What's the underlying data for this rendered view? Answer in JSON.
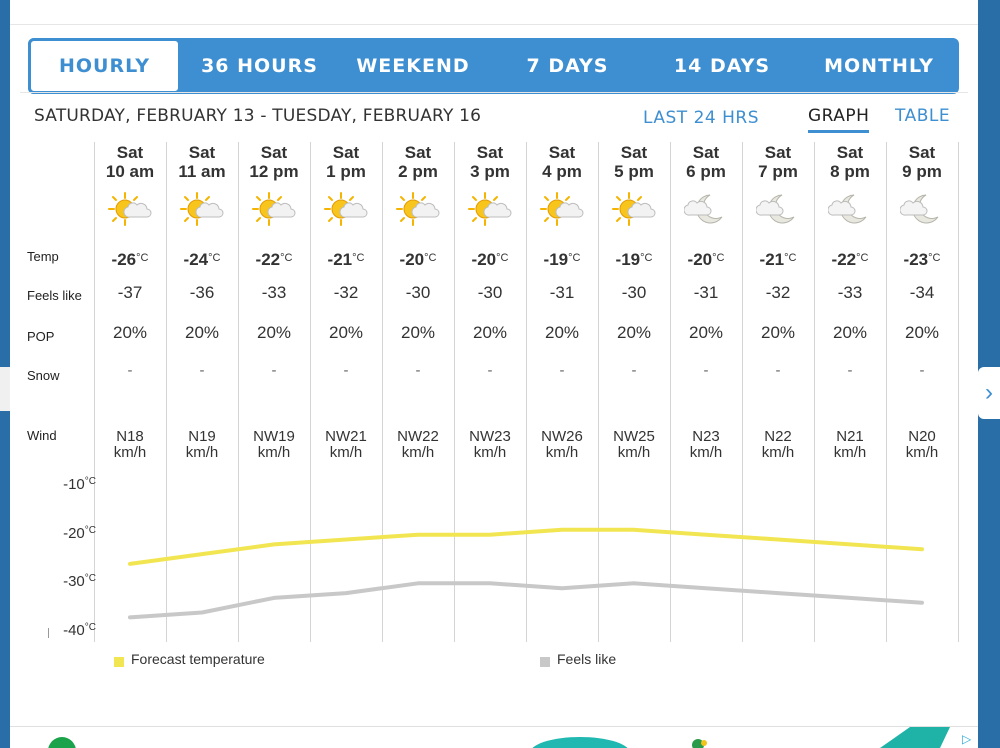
{
  "tabs": [
    "HOURLY",
    "36 HOURS",
    "WEEKEND",
    "7 DAYS",
    "14 DAYS",
    "MONTHLY"
  ],
  "active_tab": "HOURLY",
  "date_range": "SATURDAY, FEBRUARY 13 - TUESDAY, FEBRUARY 16",
  "view": {
    "last24": "LAST 24 HRS",
    "graph": "GRAPH",
    "table": "TABLE"
  },
  "row_labels": {
    "temp": "Temp",
    "feels": "Feels like",
    "pop": "POP",
    "snow": "Snow",
    "wind": "Wind"
  },
  "unit_c": "°C",
  "hours": [
    {
      "day": "Sat",
      "time": "10 am",
      "icon": "sun-cloud-icon",
      "temp": "-26",
      "feels": "-37",
      "pop": "20%",
      "snow": "-",
      "wind": "N18",
      "wind_unit": "km/h"
    },
    {
      "day": "Sat",
      "time": "11 am",
      "icon": "sun-cloud-icon",
      "temp": "-24",
      "feels": "-36",
      "pop": "20%",
      "snow": "-",
      "wind": "N19",
      "wind_unit": "km/h"
    },
    {
      "day": "Sat",
      "time": "12 pm",
      "icon": "sun-cloud-icon",
      "temp": "-22",
      "feels": "-33",
      "pop": "20%",
      "snow": "-",
      "wind": "NW19",
      "wind_unit": "km/h"
    },
    {
      "day": "Sat",
      "time": "1 pm",
      "icon": "sun-cloud-icon",
      "temp": "-21",
      "feels": "-32",
      "pop": "20%",
      "snow": "-",
      "wind": "NW21",
      "wind_unit": "km/h"
    },
    {
      "day": "Sat",
      "time": "2 pm",
      "icon": "sun-cloud-icon",
      "temp": "-20",
      "feels": "-30",
      "pop": "20%",
      "snow": "-",
      "wind": "NW22",
      "wind_unit": "km/h"
    },
    {
      "day": "Sat",
      "time": "3 pm",
      "icon": "sun-cloud-icon",
      "temp": "-20",
      "feels": "-30",
      "pop": "20%",
      "snow": "-",
      "wind": "NW23",
      "wind_unit": "km/h"
    },
    {
      "day": "Sat",
      "time": "4 pm",
      "icon": "sun-cloud-icon",
      "temp": "-19",
      "feels": "-31",
      "pop": "20%",
      "snow": "-",
      "wind": "NW26",
      "wind_unit": "km/h"
    },
    {
      "day": "Sat",
      "time": "5 pm",
      "icon": "sun-cloud-icon",
      "temp": "-19",
      "feels": "-30",
      "pop": "20%",
      "snow": "-",
      "wind": "NW25",
      "wind_unit": "km/h"
    },
    {
      "day": "Sat",
      "time": "6 pm",
      "icon": "moon-cloud-icon",
      "temp": "-20",
      "feels": "-31",
      "pop": "20%",
      "snow": "-",
      "wind": "N23",
      "wind_unit": "km/h"
    },
    {
      "day": "Sat",
      "time": "7 pm",
      "icon": "moon-cloud-icon",
      "temp": "-21",
      "feels": "-32",
      "pop": "20%",
      "snow": "-",
      "wind": "N22",
      "wind_unit": "km/h"
    },
    {
      "day": "Sat",
      "time": "8 pm",
      "icon": "moon-cloud-icon",
      "temp": "-22",
      "feels": "-33",
      "pop": "20%",
      "snow": "-",
      "wind": "N21",
      "wind_unit": "km/h"
    },
    {
      "day": "Sat",
      "time": "9 pm",
      "icon": "moon-cloud-icon",
      "temp": "-23",
      "feels": "-34",
      "pop": "20%",
      "snow": "-",
      "wind": "N20",
      "wind_unit": "km/h"
    }
  ],
  "chart_data": {
    "type": "line",
    "categories": [
      "10 am",
      "11 am",
      "12 pm",
      "1 pm",
      "2 pm",
      "3 pm",
      "4 pm",
      "5 pm",
      "6 pm",
      "7 pm",
      "8 pm",
      "9 pm"
    ],
    "series": [
      {
        "name": "Forecast temperature",
        "color": "#f2e552",
        "values": [
          -26,
          -24,
          -22,
          -21,
          -20,
          -20,
          -19,
          -19,
          -20,
          -21,
          -22,
          -23
        ]
      },
      {
        "name": "Feels like",
        "color": "#c8c8c8",
        "values": [
          -37,
          -36,
          -33,
          -32,
          -30,
          -30,
          -31,
          -30,
          -31,
          -32,
          -33,
          -34
        ]
      }
    ],
    "ylim": [
      -40,
      -10
    ],
    "yticks": [
      "-10",
      "-20",
      "-30",
      "-40"
    ],
    "yunit": "°C",
    "legend": "bottom"
  },
  "colors": {
    "accent": "#3d8fd1",
    "temp_line": "#f2e552",
    "feels_line": "#c8c8c8"
  }
}
